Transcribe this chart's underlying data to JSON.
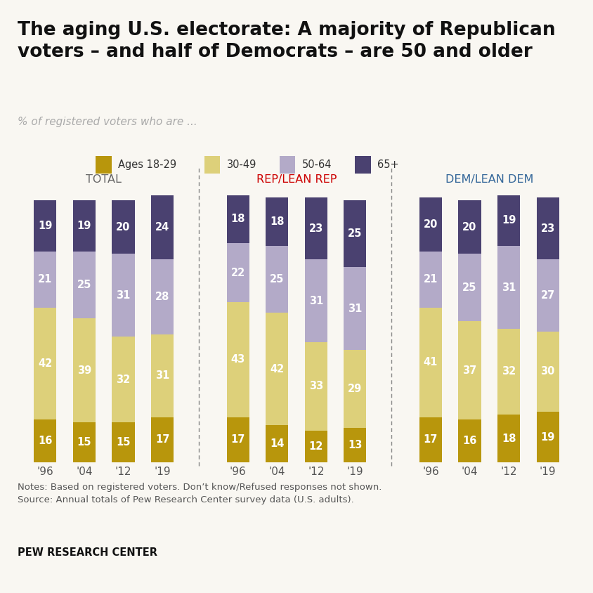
{
  "title": "The aging U.S. electorate: A majority of Republican\nvoters – and half of Democrats – are 50 and older",
  "subtitle": "% of registered voters who are ...",
  "groups": [
    "TOTAL",
    "REP/LEAN REP",
    "DEM/LEAN DEM"
  ],
  "group_title_colors": [
    "#666666",
    "#cc0000",
    "#336699"
  ],
  "years": [
    "'96",
    "'04",
    "'12",
    "'19"
  ],
  "data": {
    "TOTAL": {
      "ages_18_29": [
        16,
        15,
        15,
        17
      ],
      "ages_30_49": [
        42,
        39,
        32,
        31
      ],
      "ages_50_64": [
        21,
        25,
        31,
        28
      ],
      "ages_65plus": [
        19,
        19,
        20,
        24
      ]
    },
    "REP/LEAN REP": {
      "ages_18_29": [
        17,
        14,
        12,
        13
      ],
      "ages_30_49": [
        43,
        42,
        33,
        29
      ],
      "ages_50_64": [
        22,
        25,
        31,
        31
      ],
      "ages_65plus": [
        18,
        18,
        23,
        25
      ]
    },
    "DEM/LEAN DEM": {
      "ages_18_29": [
        17,
        16,
        18,
        19
      ],
      "ages_30_49": [
        41,
        37,
        32,
        30
      ],
      "ages_50_64": [
        21,
        25,
        31,
        27
      ],
      "ages_65plus": [
        20,
        20,
        19,
        23
      ]
    }
  },
  "colors": {
    "ages_18_29": "#b8960c",
    "ages_30_49": "#ddd07a",
    "ages_50_64": "#b3aac8",
    "ages_65plus": "#4a4170"
  },
  "legend_labels": [
    "Ages 18-29",
    "30-49",
    "50-64",
    "65+"
  ],
  "legend_keys": [
    "ages_18_29",
    "ages_30_49",
    "ages_50_64",
    "ages_65plus"
  ],
  "notes": "Notes: Based on registered voters. Don’t know/Refused responses not shown.\nSource: Annual totals of Pew Research Center survey data (U.S. adults).",
  "source_bold": "PEW RESEARCH CENTER",
  "background_color": "#f9f7f2",
  "top_line_color": "#cccccc"
}
